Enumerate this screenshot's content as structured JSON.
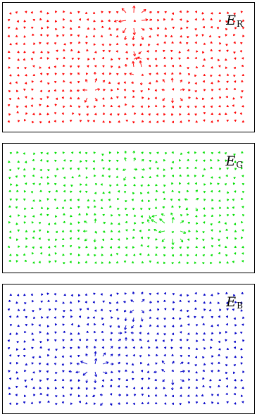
{
  "panels": [
    {
      "id": "r",
      "label_main": "E",
      "label_sub": "R",
      "color": "#ff0000"
    },
    {
      "id": "g",
      "label_main": "E",
      "label_sub": "G",
      "color": "#00e000"
    },
    {
      "id": "b",
      "label_main": "E",
      "label_sub": "B",
      "color": "#0000c8"
    }
  ]
}
